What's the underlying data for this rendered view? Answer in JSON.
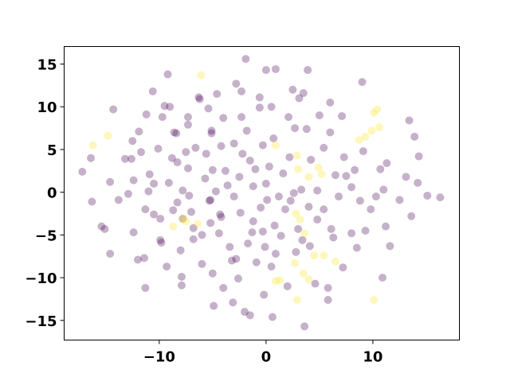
{
  "chart_data": {
    "type": "scatter",
    "xlim": [
      -18.9,
      18.1
    ],
    "ylim": [
      -17.3,
      17.05
    ],
    "xticks": [
      {
        "value": -10,
        "label": "−10"
      },
      0,
      10
    ],
    "yticks": [
      {
        "value": -15,
        "label": "−15"
      },
      {
        "value": -10,
        "label": "−10"
      },
      {
        "value": -5,
        "label": "−5"
      },
      0,
      5,
      10,
      15
    ],
    "alpha": 0.3,
    "series": [
      {
        "color": "#440154",
        "x": [
          -17.2,
          -16.3,
          -16.4,
          -15.4,
          -15.1,
          -14.6,
          -14.6,
          -14.3,
          -13.8,
          -13.2,
          -12.9,
          -12.6,
          -12.4,
          -12.4,
          -12.5,
          -12.0,
          -11.9,
          -11.7,
          -11.4,
          -11.3,
          -11.3,
          -11.2,
          -11.0,
          -10.9,
          -10.6,
          -10.5,
          -10.5,
          -10.1,
          -9.9,
          -9.9,
          -9.7,
          -9.8,
          -9.5,
          -9.3,
          -9.1,
          -9.0,
          -9.2,
          -8.7,
          -8.8,
          -8.6,
          -8.4,
          -8.3,
          -8.3,
          -8.0,
          -7.9,
          -7.9,
          -7.8,
          -7.8,
          -7.5,
          -7.3,
          -7.3,
          -7.3,
          -7.2,
          -7.0,
          -6.8,
          -6.8,
          -6.6,
          -6.3,
          -6.2,
          -6.0,
          -6.0,
          -5.7,
          -5.6,
          -5.4,
          -5.3,
          -5.2,
          -5.2,
          -5.1,
          -5.1,
          -5.0,
          -5.0,
          -4.9,
          -4.6,
          -4.7,
          -4.4,
          -4.3,
          -4.2,
          -4.2,
          -4.0,
          -4.0,
          -3.8,
          -3.6,
          -3.4,
          -3.2,
          -3.1,
          -3.0,
          -3.0,
          -2.8,
          -2.8,
          -2.6,
          -2.5,
          -2.4,
          -2.3,
          -2.3,
          -2.2,
          -2.0,
          -1.9,
          -1.8,
          -1.7,
          -1.5,
          -1.5,
          -1.3,
          -1.2,
          -1.2,
          -1.0,
          -0.9,
          -0.6,
          -0.6,
          -0.5,
          -0.3,
          -0.3,
          -0.2,
          -0.1,
          0.0,
          0.0,
          0.1,
          0.3,
          0.5,
          0.5,
          0.6,
          0.7,
          0.8,
          0.9,
          0.9,
          1.2,
          1.4,
          1.6,
          1.8,
          2.0,
          2.1,
          2.2,
          2.3,
          2.5,
          2.6,
          2.7,
          2.8,
          3.0,
          3.1,
          3.3,
          3.4,
          3.5,
          3.6,
          3.8,
          3.9,
          4.0,
          4.1,
          4.2,
          4.6,
          4.8,
          4.8,
          5.0,
          5.4,
          5.4,
          5.8,
          5.8,
          6.0,
          6.0,
          6.1,
          6.3,
          6.5,
          6.8,
          7.1,
          7.2,
          7.3,
          7.5,
          8.0,
          8.0,
          8.3,
          8.5,
          8.8,
          9.0,
          9.1,
          9.3,
          9.8,
          10.3,
          10.7,
          10.9,
          11.0,
          11.3,
          11.2,
          11.6,
          12.5,
          13.1,
          13.4,
          13.6,
          13.9,
          14.2,
          14.3,
          15.1,
          16.3
        ],
        "y": [
          2.4,
          -1.1,
          4.0,
          -4.0,
          -4.3,
          -7.2,
          1.2,
          9.7,
          -0.9,
          3.9,
          -0.2,
          3.9,
          -4.7,
          1.4,
          6.0,
          -7.9,
          7.1,
          4.7,
          -7.7,
          -11.2,
          -2.0,
          9.1,
          0.1,
          2.1,
          11.8,
          -2.6,
          1.0,
          5.1,
          -3.1,
          -5.6,
          8.8,
          -5.9,
          10.1,
          -8.7,
          1.1,
          10.0,
          13.8,
          -2.1,
          4.0,
          7.0,
          6.9,
          -1.2,
          3.5,
          -6.8,
          -9.9,
          -10.9,
          0.2,
          -3.1,
          4.7,
          7.9,
          8.8,
          2.8,
          -0.4,
          -2.3,
          -5.5,
          -4.2,
          5.2,
          11.1,
          10.9,
          -8.4,
          -5.0,
          1.6,
          4.5,
          9.8,
          -1.0,
          -0.9,
          -3.6,
          6.9,
          7.2,
          2.6,
          -9.5,
          -13.3,
          11.5,
          0.1,
          -4.8,
          -2.6,
          -2.9,
          5.4,
          -11.2,
          8.7,
          2.5,
          0.8,
          -6.4,
          -8.0,
          -12.9,
          5.7,
          -0.5,
          -7.8,
          12.7,
          -10.1,
          1.8,
          -2.4,
          11.8,
          8.8,
          4.5,
          -14.0,
          15.6,
          7.2,
          -6.0,
          -14.4,
          3.7,
          -4.7,
          -3.4,
          0.7,
          2.7,
          -8.2,
          9.9,
          11.1,
          -1.8,
          5.5,
          -4.6,
          -12.0,
          -6.4,
          14.3,
          1.0,
          -0.9,
          3.0,
          -8.7,
          10.0,
          -14.6,
          6.3,
          -3.9,
          -7.2,
          14.4,
          -0.5,
          -5.1,
          2.2,
          -2.0,
          -11.0,
          8.8,
          4.1,
          -1.0,
          12.0,
          -0.1,
          7.5,
          -7.0,
          -4.3,
          11.0,
          0.3,
          -5.6,
          11.6,
          -15.7,
          7.4,
          14.3,
          -1.7,
          -6.3,
          3.8,
          -10.7,
          0.2,
          -3.2,
          9.0,
          5.2,
          -2.0,
          -12.6,
          -11.2,
          7.0,
          10.5,
          -4.3,
          -5.3,
          2.0,
          -0.5,
          8.9,
          -8.8,
          4.1,
          1.9,
          0.6,
          -4.8,
          2.6,
          -6.5,
          -1.0,
          12.9,
          4.8,
          -4.5,
          -2.0,
          -0.5,
          2.7,
          -10.0,
          0.3,
          3.4,
          -4.0,
          -6.3,
          -0.9,
          1.8,
          8.4,
          -2.8,
          6.5,
          1.1,
          4.2,
          -0.4,
          -0.6
        ]
      },
      {
        "color": "#fde725",
        "x": [
          -16.2,
          -14.8,
          -6.1,
          -7.8,
          -8.7,
          -7.5,
          -6.4,
          0.9,
          2.9,
          3.0,
          4.0,
          4.9,
          5.2,
          2.8,
          3.2,
          3.6,
          2.7,
          4.5,
          5.4,
          6.5,
          0.9,
          1.3,
          3.5,
          4.0,
          2.9,
          10.1,
          8.7,
          9.3,
          9.9,
          10.6,
          10.1,
          10.4
        ],
        "y": [
          5.5,
          6.6,
          13.7,
          -3.1,
          -4.0,
          -3.4,
          -3.7,
          5.5,
          4.3,
          2.7,
          1.8,
          2.9,
          2.1,
          -2.5,
          -3.2,
          -4.8,
          -8.3,
          -7.4,
          -7.4,
          -8.1,
          -10.4,
          -10.3,
          -9.5,
          -10.2,
          -12.6,
          -12.6,
          6.1,
          6.5,
          7.2,
          7.6,
          9.3,
          9.7
        ]
      }
    ]
  }
}
